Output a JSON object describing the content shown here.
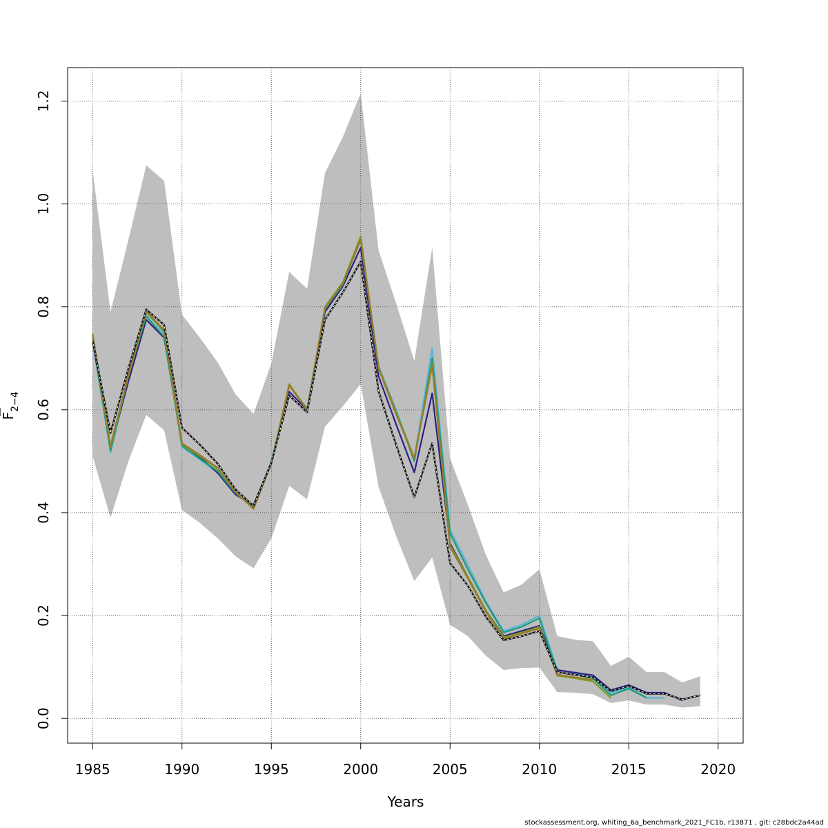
{
  "chart_data": {
    "type": "line",
    "xlabel": "Years",
    "ylabel": {
      "main": "F",
      "sub": "2−4"
    },
    "xlim": [
      1983.6,
      2021.4
    ],
    "ylim": [
      -0.048,
      1.265
    ],
    "xticks": [
      1985,
      1990,
      1995,
      2000,
      2005,
      2010,
      2015,
      2020
    ],
    "yticks": [
      0.0,
      0.2,
      0.4,
      0.6,
      0.8,
      1.0,
      1.2
    ],
    "ytick_labels": [
      "0.0",
      "0.2",
      "0.4",
      "0.6",
      "0.8",
      "1.0",
      "1.2"
    ],
    "grid": true,
    "band": {
      "color": "#bebebe",
      "x": [
        1985,
        1986,
        1987,
        1988,
        1989,
        1990,
        1991,
        1992,
        1993,
        1994,
        1995,
        1996,
        1997,
        1998,
        1999,
        2000,
        2001,
        2002,
        2003,
        2004,
        2005,
        2006,
        2007,
        2008,
        2009,
        2010,
        2011,
        2012,
        2013,
        2014,
        2015,
        2016,
        2017,
        2018,
        2019
      ],
      "upper": [
        1.065,
        0.79,
        0.93,
        1.075,
        1.045,
        0.785,
        0.74,
        0.692,
        0.63,
        0.592,
        0.69,
        0.868,
        0.835,
        1.06,
        1.13,
        1.215,
        0.91,
        0.805,
        0.695,
        0.915,
        0.505,
        0.415,
        0.318,
        0.245,
        0.26,
        0.29,
        0.16,
        0.153,
        0.15,
        0.102,
        0.12,
        0.09,
        0.09,
        0.07,
        0.082
      ],
      "lower": [
        0.51,
        0.39,
        0.5,
        0.59,
        0.56,
        0.405,
        0.38,
        0.35,
        0.315,
        0.292,
        0.35,
        0.452,
        0.426,
        0.567,
        0.607,
        0.65,
        0.45,
        0.353,
        0.267,
        0.313,
        0.182,
        0.16,
        0.122,
        0.094,
        0.098,
        0.099,
        0.051,
        0.05,
        0.047,
        0.03,
        0.035,
        0.027,
        0.027,
        0.021,
        0.024
      ]
    },
    "series": [
      {
        "color": "#57b6d8",
        "x": [
          1985,
          1986,
          1987,
          1988,
          1989,
          1990,
          1991,
          1992,
          1993,
          1994,
          1995,
          1996,
          1997,
          1998,
          1999,
          2000,
          2001,
          2002,
          2003,
          2004,
          2005,
          2006,
          2007,
          2008,
          2009,
          2010,
          2011,
          2012,
          2013,
          2014,
          2015,
          2016,
          2017
        ],
        "values": [
          0.735,
          0.517,
          0.66,
          0.79,
          0.748,
          0.528,
          0.503,
          0.478,
          0.437,
          0.412,
          0.5,
          0.648,
          0.6,
          0.797,
          0.845,
          0.937,
          0.685,
          0.598,
          0.505,
          0.72,
          0.367,
          0.298,
          0.228,
          0.17,
          0.182,
          0.2,
          0.095,
          0.088,
          0.08,
          0.05,
          0.06,
          0.04,
          0.04
        ]
      },
      {
        "color": "#2c1f84",
        "x": [
          1985,
          1986,
          1987,
          1988,
          1989,
          1990,
          1991,
          1992,
          1993,
          1994,
          1995,
          1996,
          1997,
          1998,
          1999,
          2000,
          2001,
          2002,
          2003,
          2004,
          2005,
          2006,
          2007,
          2008,
          2009,
          2010,
          2011,
          2012,
          2013,
          2014,
          2015,
          2016,
          2017,
          2018
        ],
        "values": [
          0.735,
          0.525,
          0.655,
          0.775,
          0.74,
          0.535,
          0.508,
          0.477,
          0.435,
          0.415,
          0.495,
          0.635,
          0.6,
          0.79,
          0.84,
          0.915,
          0.665,
          0.57,
          0.478,
          0.632,
          0.34,
          0.275,
          0.21,
          0.16,
          0.17,
          0.18,
          0.094,
          0.089,
          0.084,
          0.055,
          0.065,
          0.05,
          0.05,
          0.035
        ]
      },
      {
        "color": "#1d9a78",
        "x": [
          1985,
          1986,
          1987,
          1988,
          1989,
          1990,
          1991,
          1992,
          1993,
          1994,
          1995,
          1996,
          1997,
          1998,
          1999,
          2000,
          2001,
          2002,
          2003,
          2004,
          2005,
          2006,
          2007,
          2008,
          2009,
          2010,
          2011,
          2012,
          2013,
          2014,
          2015,
          2016
        ],
        "values": [
          0.74,
          0.52,
          0.665,
          0.782,
          0.742,
          0.53,
          0.505,
          0.48,
          0.438,
          0.41,
          0.498,
          0.647,
          0.602,
          0.796,
          0.843,
          0.932,
          0.683,
          0.595,
          0.5,
          0.7,
          0.36,
          0.29,
          0.225,
          0.167,
          0.178,
          0.195,
          0.09,
          0.085,
          0.078,
          0.045,
          0.058,
          0.04
        ]
      },
      {
        "color": "#7a9c1e",
        "x": [
          1985,
          1986,
          1987,
          1988,
          1989,
          1990,
          1991,
          1992,
          1993,
          1994,
          1995,
          1996,
          1997,
          1998,
          1999,
          2000,
          2001,
          2002,
          2003,
          2004,
          2005,
          2006,
          2007,
          2008,
          2009,
          2010,
          2011,
          2012,
          2013,
          2014
        ],
        "values": [
          0.745,
          0.527,
          0.665,
          0.79,
          0.752,
          0.533,
          0.51,
          0.485,
          0.44,
          0.408,
          0.497,
          0.65,
          0.6,
          0.8,
          0.848,
          0.937,
          0.683,
          0.593,
          0.507,
          0.69,
          0.337,
          0.275,
          0.21,
          0.158,
          0.167,
          0.178,
          0.083,
          0.078,
          0.072,
          0.04
        ]
      },
      {
        "color": "#9b7a2d",
        "x": [
          1985,
          1986,
          1987,
          1988,
          1989,
          1990,
          1991,
          1992,
          1993,
          1994,
          1995,
          1996,
          1997,
          1998,
          1999,
          2000,
          2001,
          2002,
          2003,
          2004,
          2005,
          2006,
          2007,
          2008,
          2009,
          2010,
          2011,
          2012,
          2013
        ],
        "values": [
          0.748,
          0.53,
          0.668,
          0.792,
          0.755,
          0.535,
          0.512,
          0.487,
          0.44,
          0.407,
          0.495,
          0.647,
          0.6,
          0.797,
          0.846,
          0.93,
          0.68,
          0.59,
          0.505,
          0.685,
          0.333,
          0.272,
          0.207,
          0.155,
          0.165,
          0.175,
          0.085,
          0.08,
          0.075
        ]
      },
      {
        "color": "#111111",
        "dashed": true,
        "x": [
          1985,
          1986,
          1987,
          1988,
          1989,
          1990,
          1991,
          1992,
          1993,
          1994,
          1995,
          1996,
          1997,
          1998,
          1999,
          2000,
          2001,
          2002,
          2003,
          2004,
          2005,
          2006,
          2007,
          2008,
          2009,
          2010,
          2011,
          2012,
          2013,
          2014,
          2015,
          2016,
          2017,
          2018,
          2019
        ],
        "values": [
          0.735,
          0.555,
          0.68,
          0.795,
          0.765,
          0.565,
          0.532,
          0.495,
          0.445,
          0.413,
          0.497,
          0.628,
          0.595,
          0.775,
          0.828,
          0.888,
          0.636,
          0.53,
          0.43,
          0.535,
          0.302,
          0.258,
          0.198,
          0.152,
          0.16,
          0.17,
          0.09,
          0.085,
          0.08,
          0.053,
          0.063,
          0.048,
          0.048,
          0.037,
          0.045
        ]
      }
    ]
  },
  "footer": "stockassessment.org, whiting_6a_benchmark_2021_FC1b, r13871 , git: c28bdc2a44ad"
}
